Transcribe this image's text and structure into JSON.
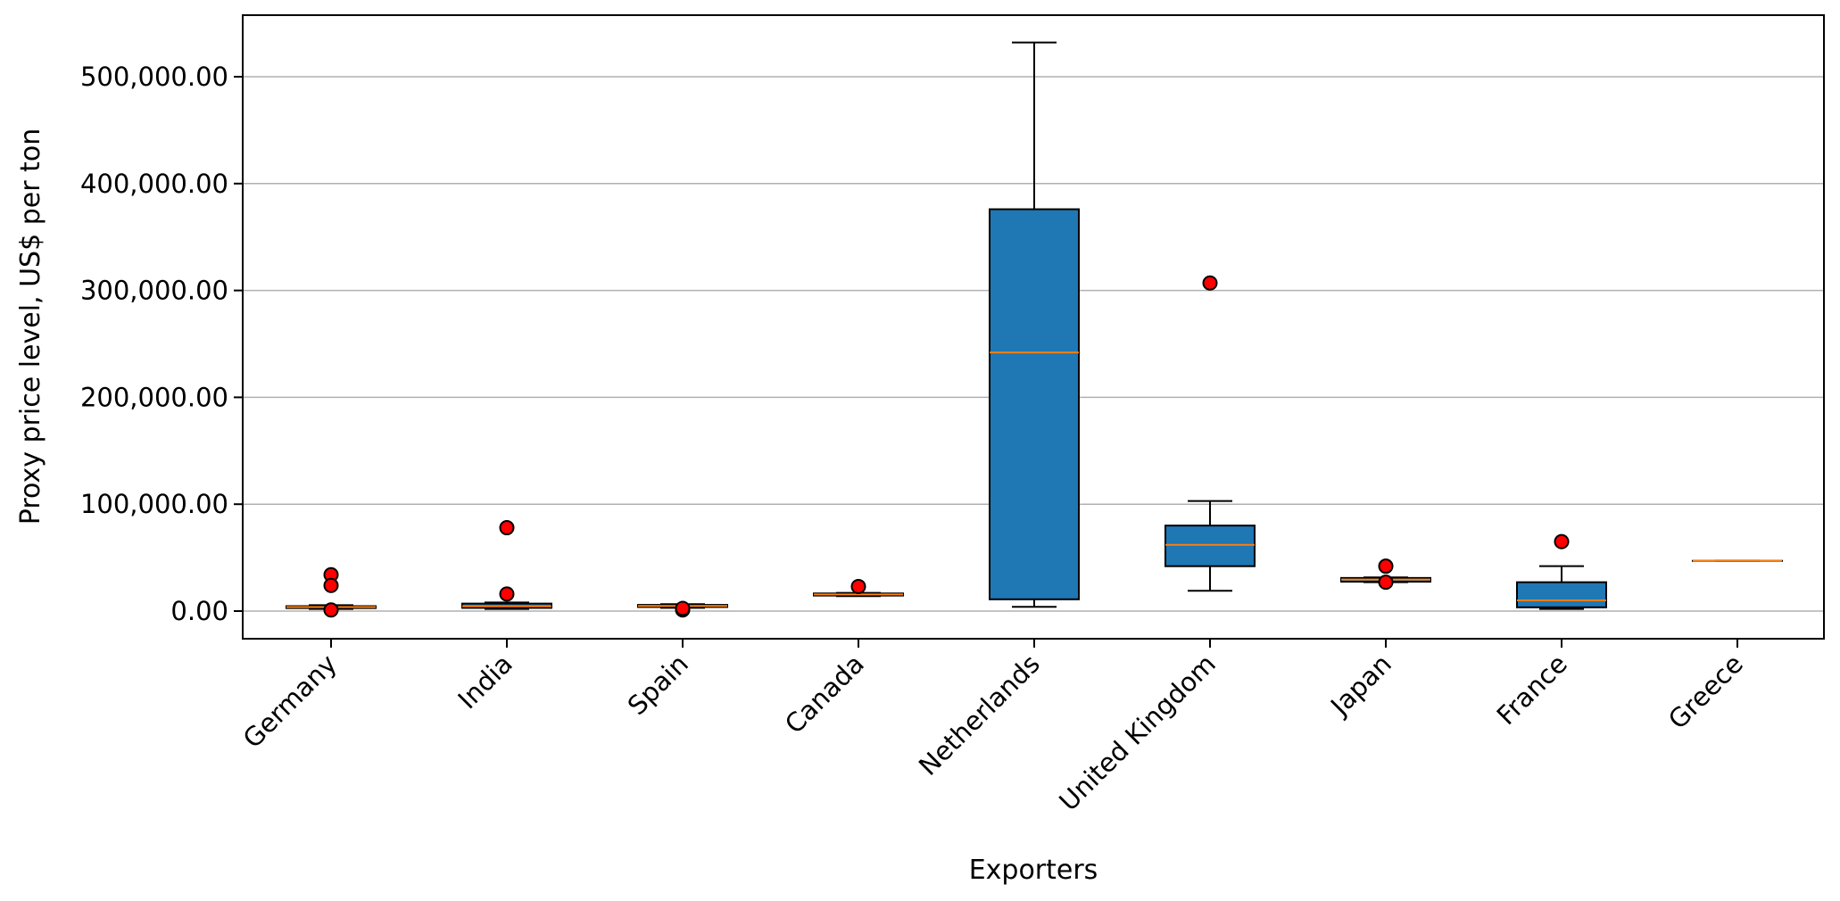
{
  "chart_data": {
    "type": "box",
    "title": "",
    "xlabel": "Exporters",
    "ylabel": "Proxy price level, US$ per ton",
    "ylim": [
      -25000,
      560000
    ],
    "yticks": [
      0,
      100000,
      200000,
      300000,
      400000,
      500000
    ],
    "ytick_labels": [
      "0.00",
      "100,000.00",
      "200,000.00",
      "300,000.00",
      "400,000.00",
      "500,000.00"
    ],
    "grid": "y",
    "box_color": "#1f77b4",
    "median_color": "#ff7f0e",
    "outlier_color": "#ff0000",
    "categories": [
      "Germany",
      "India",
      "Spain",
      "Canada",
      "Netherlands",
      "United Kingdom",
      "Japan",
      "France",
      "Greece"
    ],
    "boxes": [
      {
        "category": "Germany",
        "whisker_low": 2000,
        "q1": 2800,
        "median": 3800,
        "q3": 4600,
        "whisker_high": 5500,
        "outliers": [
          34000,
          24000,
          1000
        ]
      },
      {
        "category": "India",
        "whisker_low": 2000,
        "q1": 3000,
        "median": 4500,
        "q3": 7000,
        "whisker_high": 8000,
        "outliers": [
          78000,
          16000
        ]
      },
      {
        "category": "Spain",
        "whisker_low": 3000,
        "q1": 3800,
        "median": 4800,
        "q3": 5800,
        "whisker_high": 6500,
        "outliers": [
          1000,
          2500
        ]
      },
      {
        "category": "Canada",
        "whisker_low": 14000,
        "q1": 14500,
        "median": 15500,
        "q3": 16500,
        "whisker_high": 17000,
        "outliers": [
          23000
        ]
      },
      {
        "category": "Netherlands",
        "whisker_low": 4000,
        "q1": 11000,
        "median": 242000,
        "q3": 376000,
        "whisker_high": 532000,
        "outliers": []
      },
      {
        "category": "United Kingdom",
        "whisker_low": 19000,
        "q1": 42000,
        "median": 62000,
        "q3": 80000,
        "whisker_high": 103000,
        "outliers": [
          307000
        ]
      },
      {
        "category": "Japan",
        "whisker_low": 27000,
        "q1": 27500,
        "median": 29500,
        "q3": 31000,
        "whisker_high": 31500,
        "outliers": [
          42000,
          27000
        ]
      },
      {
        "category": "France",
        "whisker_low": 2000,
        "q1": 3500,
        "median": 10000,
        "q3": 27000,
        "whisker_high": 42000,
        "outliers": [
          65000
        ]
      },
      {
        "category": "Greece",
        "whisker_low": 47000,
        "q1": 47000,
        "median": 47000,
        "q3": 47000,
        "whisker_high": 47000,
        "outliers": []
      }
    ]
  }
}
